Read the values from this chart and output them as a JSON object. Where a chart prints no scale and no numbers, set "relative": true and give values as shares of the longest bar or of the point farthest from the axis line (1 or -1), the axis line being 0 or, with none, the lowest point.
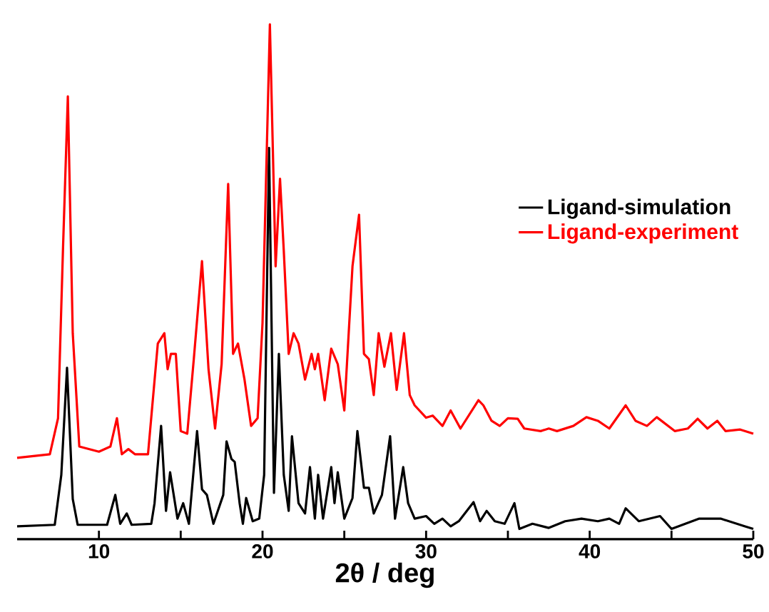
{
  "chart_data": {
    "type": "line",
    "relative": true,
    "xlabel": "2θ / deg",
    "xlim": [
      5,
      50
    ],
    "xticks": [
      10,
      {
        "value": 15,
        "label": null
      },
      20,
      {
        "value": 25,
        "label": null
      },
      30,
      {
        "value": 35,
        "label": null
      },
      40,
      {
        "value": 45,
        "label": null
      },
      50
    ],
    "legend": "right",
    "marker": "none",
    "line_style": "solid",
    "series": [
      {
        "name": "Ligand-simulation",
        "color": "#000000",
        "x": [
          5,
          7.3,
          7.7,
          8.05,
          8.4,
          8.7,
          10.5,
          11.0,
          11.3,
          11.7,
          12.0,
          13.2,
          13.4,
          13.8,
          14.1,
          14.35,
          14.8,
          15.15,
          15.5,
          16.0,
          16.3,
          16.6,
          17.0,
          17.6,
          17.8,
          18.1,
          18.3,
          18.6,
          18.8,
          19.0,
          19.4,
          19.8,
          20.1,
          20.4,
          20.7,
          21.0,
          21.3,
          21.6,
          21.8,
          22.2,
          22.6,
          22.9,
          23.2,
          23.4,
          23.7,
          24.2,
          24.4,
          24.6,
          25.0,
          25.5,
          25.8,
          26.2,
          26.5,
          26.8,
          27.3,
          27.8,
          28.1,
          28.6,
          28.9,
          29.3,
          30.0,
          30.5,
          31.0,
          31.5,
          32.0,
          32.9,
          33.3,
          33.7,
          34.2,
          34.8,
          35.4,
          35.7,
          36.5,
          37.5,
          38.5,
          39.5,
          40.5,
          41.2,
          41.8,
          42.2,
          43.0,
          44.3,
          45.0,
          46.7,
          48.0,
          49.5,
          50
        ],
        "values": [
          0.025,
          0.028,
          0.125,
          0.333,
          0.078,
          0.028,
          0.028,
          0.086,
          0.03,
          0.05,
          0.028,
          0.03,
          0.07,
          0.22,
          0.055,
          0.13,
          0.04,
          0.07,
          0.03,
          0.21,
          0.097,
          0.086,
          0.03,
          0.086,
          0.19,
          0.156,
          0.15,
          0.07,
          0.03,
          0.08,
          0.035,
          0.04,
          0.125,
          0.76,
          0.09,
          0.36,
          0.125,
          0.055,
          0.2,
          0.07,
          0.05,
          0.14,
          0.04,
          0.125,
          0.04,
          0.14,
          0.07,
          0.13,
          0.04,
          0.08,
          0.21,
          0.1,
          0.1,
          0.05,
          0.086,
          0.2,
          0.04,
          0.14,
          0.07,
          0.04,
          0.045,
          0.03,
          0.04,
          0.025,
          0.035,
          0.072,
          0.035,
          0.055,
          0.035,
          0.03,
          0.07,
          0.02,
          0.03,
          0.022,
          0.035,
          0.04,
          0.035,
          0.04,
          0.03,
          0.06,
          0.035,
          0.045,
          0.02,
          0.04,
          0.04,
          0.025,
          0.02
        ]
      },
      {
        "name": "Ligand-experiment",
        "color": "#ff0000",
        "x": [
          5,
          7.0,
          7.5,
          7.8,
          8.1,
          8.4,
          8.8,
          10.0,
          10.7,
          11.1,
          11.4,
          11.8,
          12.2,
          13.0,
          13.6,
          14.0,
          14.2,
          14.4,
          14.7,
          15.0,
          15.4,
          15.8,
          16.3,
          16.7,
          17.1,
          17.5,
          17.9,
          18.2,
          18.5,
          18.9,
          19.3,
          19.7,
          20.0,
          20.45,
          20.8,
          21.07,
          21.3,
          21.6,
          21.9,
          22.2,
          22.6,
          23.0,
          23.2,
          23.4,
          23.8,
          24.2,
          24.6,
          25.0,
          25.5,
          25.9,
          26.2,
          26.5,
          26.8,
          27.1,
          27.45,
          27.85,
          28.2,
          28.65,
          29.0,
          29.3,
          30.0,
          30.4,
          31.0,
          31.5,
          32.1,
          33.2,
          33.5,
          34.0,
          34.5,
          35.0,
          35.6,
          36.0,
          37.0,
          37.5,
          38.0,
          39.0,
          39.8,
          40.5,
          41.2,
          42.2,
          42.8,
          43.5,
          44.1,
          45.2,
          46.0,
          46.6,
          47.2,
          47.8,
          48.3,
          49.2,
          50
        ],
        "values": [
          0.158,
          0.165,
          0.235,
          0.56,
          0.86,
          0.4,
          0.18,
          0.17,
          0.18,
          0.235,
          0.165,
          0.175,
          0.165,
          0.165,
          0.38,
          0.4,
          0.33,
          0.36,
          0.36,
          0.21,
          0.205,
          0.35,
          0.54,
          0.33,
          0.215,
          0.34,
          0.69,
          0.36,
          0.38,
          0.31,
          0.22,
          0.235,
          0.42,
          1.0,
          0.53,
          0.7,
          0.56,
          0.36,
          0.4,
          0.38,
          0.31,
          0.36,
          0.33,
          0.36,
          0.27,
          0.37,
          0.34,
          0.25,
          0.53,
          0.63,
          0.36,
          0.35,
          0.28,
          0.4,
          0.335,
          0.4,
          0.29,
          0.4,
          0.28,
          0.26,
          0.236,
          0.24,
          0.22,
          0.25,
          0.215,
          0.27,
          0.26,
          0.23,
          0.22,
          0.235,
          0.234,
          0.215,
          0.21,
          0.215,
          0.21,
          0.22,
          0.237,
          0.23,
          0.215,
          0.26,
          0.23,
          0.22,
          0.237,
          0.21,
          0.215,
          0.234,
          0.215,
          0.23,
          0.21,
          0.213,
          0.205
        ]
      }
    ]
  }
}
